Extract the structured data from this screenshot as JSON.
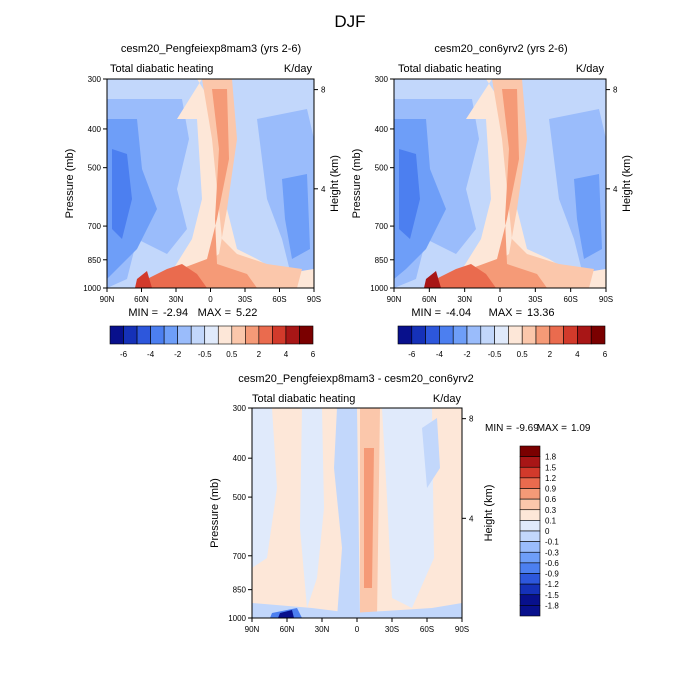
{
  "page_title": "DJF",
  "colors": {
    "divergent": [
      "#08108c",
      "#1531b8",
      "#2d57dc",
      "#4c7ff0",
      "#6e9ef8",
      "#9abcfb",
      "#c2d7fb",
      "#e0eafb",
      "#fde7d8",
      "#fbc7ab",
      "#f59a77",
      "#ea6b4e",
      "#d23a2b",
      "#a81616",
      "#7a0000"
    ]
  },
  "chart_data": [
    {
      "type": "heatmap",
      "id": "exp",
      "title": "cesm20_Pengfeiexp8mam3 (yrs 2-6)",
      "subtitle_left": "Total diabatic heating",
      "subtitle_right": "K/day",
      "xlabel": "",
      "ylabel": "Pressure (mb)",
      "ylabel_right": "Height (km)",
      "x_ticks": [
        "90N",
        "60N",
        "30N",
        "0",
        "30S",
        "60S",
        "90S"
      ],
      "x_range": [
        90,
        -90
      ],
      "y_ticks": [
        300,
        400,
        500,
        700,
        850,
        1000
      ],
      "y_range": [
        300,
        1000
      ],
      "height_ticks": [
        8,
        4
      ],
      "min_label": "MIN =",
      "min": "-2.94",
      "max_label": "MAX =",
      "max": "5.22",
      "colorbar_labels": [
        "-6",
        "-4",
        "-2",
        "-0.5",
        "0.5",
        "2",
        "4",
        "6"
      ],
      "colorbar_levels": [
        -6,
        -5,
        -4,
        -3,
        -2,
        -1,
        -0.5,
        0,
        0.5,
        1,
        2,
        3,
        4,
        5,
        6
      ]
    },
    {
      "type": "heatmap",
      "id": "ctl",
      "title": "cesm20_con6yrv2 (yrs 2-6)",
      "subtitle_left": "Total diabatic heating",
      "subtitle_right": "K/day",
      "xlabel": "",
      "ylabel": "Pressure (mb)",
      "ylabel_right": "Height (km)",
      "x_ticks": [
        "90N",
        "60N",
        "30N",
        "0",
        "30S",
        "60S",
        "90S"
      ],
      "x_range": [
        90,
        -90
      ],
      "y_ticks": [
        300,
        400,
        500,
        700,
        850,
        1000
      ],
      "y_range": [
        300,
        1000
      ],
      "height_ticks": [
        8,
        4
      ],
      "min_label": "MIN =",
      "min": "-4.04",
      "max_label": "MAX =",
      "max": "13.36",
      "colorbar_labels": [
        "-6",
        "-4",
        "-2",
        "-0.5",
        "0.5",
        "2",
        "4",
        "6"
      ],
      "colorbar_levels": [
        -6,
        -5,
        -4,
        -3,
        -2,
        -1,
        -0.5,
        0,
        0.5,
        1,
        2,
        3,
        4,
        5,
        6
      ]
    },
    {
      "type": "heatmap",
      "id": "diff",
      "title": "cesm20_Pengfeiexp8mam3 - cesm20_con6yrv2",
      "subtitle_left": "Total diabatic heating",
      "subtitle_right": "K/day",
      "xlabel": "",
      "ylabel": "Pressure (mb)",
      "ylabel_right": "Height (km)",
      "x_ticks": [
        "90N",
        "60N",
        "30N",
        "0",
        "30S",
        "60S",
        "90S"
      ],
      "x_range": [
        90,
        -90
      ],
      "y_ticks": [
        300,
        400,
        500,
        700,
        850,
        1000
      ],
      "y_range": [
        300,
        1000
      ],
      "height_ticks": [
        8,
        4
      ],
      "min_label": "MIN =",
      "min": "-9.69",
      "max_label": "MAX =",
      "max": "1.09",
      "colorbar_labels": [
        "1.8",
        "1.5",
        "1.2",
        "0.9",
        "0.6",
        "0.3",
        "0.1",
        "0",
        "-0.1",
        "-0.3",
        "-0.6",
        "-0.9",
        "-1.2",
        "-1.5",
        "-1.8"
      ],
      "colorbar_levels": [
        1.8,
        1.5,
        1.2,
        0.9,
        0.6,
        0.3,
        0.1,
        0,
        -0.1,
        -0.3,
        -0.6,
        -0.9,
        -1.2,
        -1.5,
        -1.8
      ]
    }
  ]
}
